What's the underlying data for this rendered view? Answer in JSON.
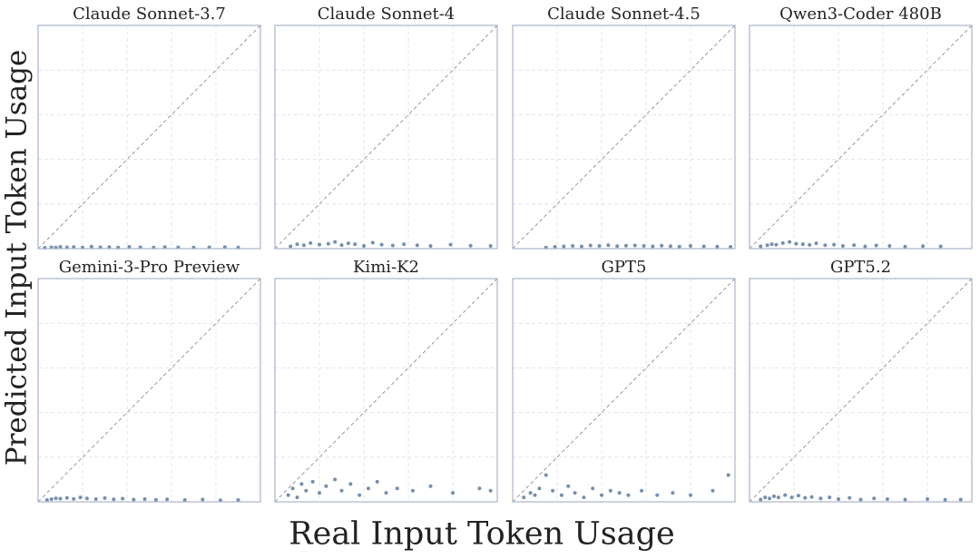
{
  "figure": {
    "xlabel": "Real Input Token Usage",
    "ylabel": "Predicted Input Token Usage"
  },
  "chart_data": [
    {
      "type": "scatter",
      "title": "Claude Sonnet-3.7",
      "color": "#3a5f8a",
      "xlim": [
        0,
        1
      ],
      "ylim": [
        0,
        1
      ],
      "xticks": [
        0.2,
        0.4,
        0.6,
        0.8
      ],
      "yticks": [
        0.2,
        0.4,
        0.6,
        0.8
      ],
      "grid": true,
      "diagonal": true,
      "x": [
        0.03,
        0.06,
        0.08,
        0.1,
        0.13,
        0.16,
        0.2,
        0.24,
        0.28,
        0.32,
        0.36,
        0.41,
        0.46,
        0.52,
        0.57,
        0.63,
        0.7,
        0.77,
        0.84,
        0.9
      ],
      "y": [
        0.004,
        0.006,
        0.005,
        0.008,
        0.006,
        0.007,
        0.005,
        0.009,
        0.006,
        0.007,
        0.005,
        0.008,
        0.006,
        0.005,
        0.007,
        0.006,
        0.005,
        0.006,
        0.007,
        0.005
      ]
    },
    {
      "type": "scatter",
      "title": "Claude Sonnet-4",
      "color": "#3a5f8a",
      "xlim": [
        0,
        1
      ],
      "ylim": [
        0,
        1
      ],
      "xticks": [
        0.2,
        0.4,
        0.6,
        0.8
      ],
      "yticks": [
        0.2,
        0.4,
        0.6,
        0.8
      ],
      "grid": true,
      "diagonal": true,
      "x": [
        0.07,
        0.1,
        0.13,
        0.16,
        0.2,
        0.24,
        0.27,
        0.3,
        0.33,
        0.36,
        0.4,
        0.44,
        0.48,
        0.53,
        0.58,
        0.64,
        0.7,
        0.79,
        0.88,
        0.97
      ],
      "y": [
        0.01,
        0.02,
        0.015,
        0.025,
        0.018,
        0.022,
        0.03,
        0.016,
        0.024,
        0.02,
        0.012,
        0.027,
        0.018,
        0.014,
        0.02,
        0.015,
        0.012,
        0.018,
        0.013,
        0.012
      ]
    },
    {
      "type": "scatter",
      "title": "Claude Sonnet-4.5",
      "color": "#3a5f8a",
      "xlim": [
        0,
        1
      ],
      "ylim": [
        0,
        1
      ],
      "xticks": [
        0.2,
        0.4,
        0.6,
        0.8
      ],
      "yticks": [
        0.2,
        0.4,
        0.6,
        0.8
      ],
      "grid": true,
      "diagonal": true,
      "x": [
        0.15,
        0.19,
        0.23,
        0.27,
        0.31,
        0.35,
        0.39,
        0.43,
        0.47,
        0.51,
        0.55,
        0.59,
        0.63,
        0.67,
        0.71,
        0.75,
        0.8,
        0.86,
        0.92,
        0.98
      ],
      "y": [
        0.005,
        0.008,
        0.01,
        0.012,
        0.01,
        0.014,
        0.012,
        0.015,
        0.011,
        0.013,
        0.014,
        0.012,
        0.01,
        0.013,
        0.011,
        0.009,
        0.012,
        0.01,
        0.009,
        0.008
      ]
    },
    {
      "type": "scatter",
      "title": "Qwen3-Coder 480B",
      "color": "#3a5f8a",
      "xlim": [
        0,
        1
      ],
      "ylim": [
        0,
        1
      ],
      "xticks": [
        0.2,
        0.4,
        0.6,
        0.8
      ],
      "yticks": [
        0.2,
        0.4,
        0.6,
        0.8
      ],
      "grid": true,
      "diagonal": true,
      "x": [
        0.05,
        0.08,
        0.1,
        0.12,
        0.15,
        0.18,
        0.21,
        0.24,
        0.27,
        0.3,
        0.34,
        0.38,
        0.42,
        0.47,
        0.52,
        0.57,
        0.63,
        0.7,
        0.78,
        0.86
      ],
      "y": [
        0.01,
        0.015,
        0.02,
        0.018,
        0.025,
        0.03,
        0.022,
        0.02,
        0.017,
        0.024,
        0.015,
        0.018,
        0.012,
        0.016,
        0.01,
        0.014,
        0.012,
        0.009,
        0.011,
        0.01
      ]
    },
    {
      "type": "scatter",
      "title": "Gemini-3-Pro Preview",
      "color": "#3a5f8a",
      "xlim": [
        0,
        1
      ],
      "ylim": [
        0,
        1
      ],
      "xticks": [
        0.2,
        0.4,
        0.6,
        0.8
      ],
      "yticks": [
        0.2,
        0.4,
        0.6,
        0.8
      ],
      "grid": true,
      "diagonal": true,
      "x": [
        0.04,
        0.06,
        0.08,
        0.1,
        0.13,
        0.16,
        0.19,
        0.22,
        0.26,
        0.3,
        0.34,
        0.38,
        0.43,
        0.48,
        0.53,
        0.58,
        0.66,
        0.74,
        0.82,
        0.9
      ],
      "y": [
        0.008,
        0.012,
        0.016,
        0.014,
        0.018,
        0.013,
        0.02,
        0.015,
        0.012,
        0.017,
        0.011,
        0.014,
        0.01,
        0.012,
        0.009,
        0.011,
        0.008,
        0.01,
        0.007,
        0.008
      ]
    },
    {
      "type": "scatter",
      "title": "Kimi-K2",
      "color": "#3a5f8a",
      "xlim": [
        0,
        1
      ],
      "ylim": [
        0,
        1
      ],
      "xticks": [
        0.2,
        0.4,
        0.6,
        0.8
      ],
      "yticks": [
        0.2,
        0.4,
        0.6,
        0.8
      ],
      "grid": true,
      "diagonal": true,
      "x": [
        0.06,
        0.08,
        0.1,
        0.12,
        0.14,
        0.17,
        0.2,
        0.23,
        0.27,
        0.3,
        0.34,
        0.38,
        0.42,
        0.46,
        0.5,
        0.55,
        0.62,
        0.7,
        0.8,
        0.92,
        0.97
      ],
      "y": [
        0.03,
        0.06,
        0.02,
        0.08,
        0.05,
        0.09,
        0.04,
        0.07,
        0.1,
        0.05,
        0.08,
        0.03,
        0.06,
        0.09,
        0.04,
        0.06,
        0.05,
        0.07,
        0.04,
        0.06,
        0.05
      ]
    },
    {
      "type": "scatter",
      "title": "GPT5",
      "color": "#3a5f8a",
      "xlim": [
        0,
        1
      ],
      "ylim": [
        0,
        1
      ],
      "xticks": [
        0.2,
        0.4,
        0.6,
        0.8
      ],
      "yticks": [
        0.2,
        0.4,
        0.6,
        0.8
      ],
      "grid": true,
      "diagonal": true,
      "x": [
        0.05,
        0.08,
        0.1,
        0.12,
        0.15,
        0.18,
        0.22,
        0.25,
        0.28,
        0.32,
        0.36,
        0.4,
        0.44,
        0.48,
        0.52,
        0.58,
        0.65,
        0.72,
        0.8,
        0.9,
        0.97
      ],
      "y": [
        0.02,
        0.04,
        0.03,
        0.06,
        0.12,
        0.05,
        0.03,
        0.07,
        0.04,
        0.02,
        0.06,
        0.03,
        0.05,
        0.04,
        0.03,
        0.05,
        0.03,
        0.04,
        0.03,
        0.05,
        0.12
      ]
    },
    {
      "type": "scatter",
      "title": "GPT5.2",
      "color": "#3a5f8a",
      "xlim": [
        0,
        1
      ],
      "ylim": [
        0,
        1
      ],
      "xticks": [
        0.2,
        0.4,
        0.6,
        0.8
      ],
      "yticks": [
        0.2,
        0.4,
        0.6,
        0.8
      ],
      "grid": true,
      "diagonal": true,
      "x": [
        0.05,
        0.07,
        0.09,
        0.11,
        0.13,
        0.16,
        0.19,
        0.22,
        0.25,
        0.28,
        0.32,
        0.36,
        0.4,
        0.45,
        0.5,
        0.56,
        0.62,
        0.7,
        0.8,
        0.88,
        0.95
      ],
      "y": [
        0.01,
        0.02,
        0.015,
        0.025,
        0.02,
        0.03,
        0.02,
        0.028,
        0.018,
        0.022,
        0.015,
        0.02,
        0.012,
        0.018,
        0.01,
        0.015,
        0.012,
        0.01,
        0.012,
        0.009,
        0.01
      ]
    }
  ]
}
